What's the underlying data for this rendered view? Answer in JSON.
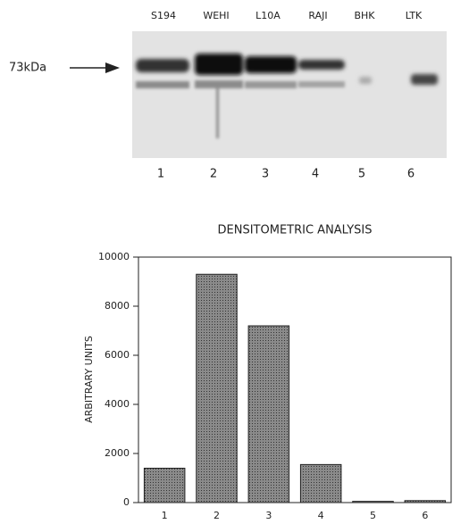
{
  "blot": {
    "marker": "73kDa",
    "lanes": [
      "S194",
      "WEHI",
      "L10A",
      "RAJI",
      "BHK",
      "LTK"
    ],
    "lane_numbers": [
      "1",
      "2",
      "3",
      "4",
      "5",
      "6"
    ]
  },
  "chart_data": {
    "type": "bar",
    "title": "DENSITOMETRIC ANALYSIS",
    "y_label": "ARBITRARY UNITS",
    "categories": [
      "1",
      "2",
      "3",
      "4",
      "5",
      "6"
    ],
    "values": [
      1400,
      9300,
      7200,
      1550,
      50,
      80
    ],
    "color": "#7a7a7a",
    "ylim": [
      0,
      10000
    ],
    "yticks": [
      0,
      2000,
      4000,
      6000,
      8000,
      10000
    ]
  }
}
